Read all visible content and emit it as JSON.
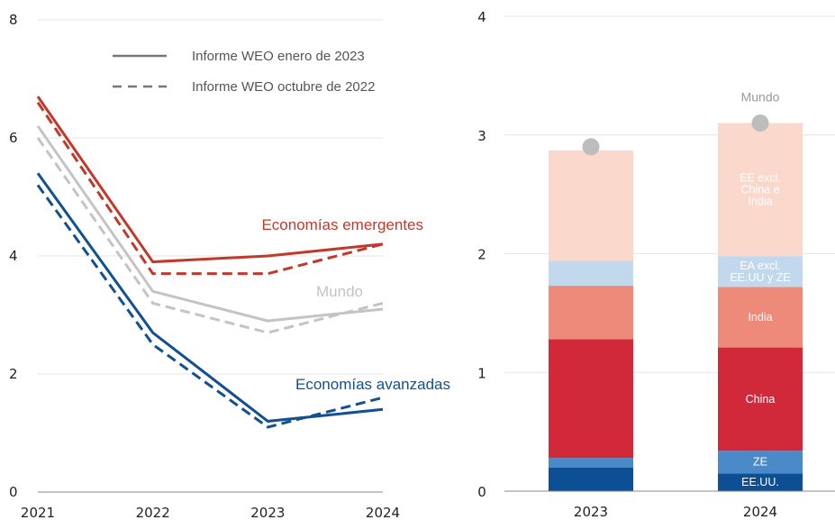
{
  "chart_data": [
    {
      "type": "line",
      "x": [
        2021,
        2022,
        2023,
        2024
      ],
      "ylim": [
        0,
        8
      ],
      "yticks": [
        0,
        2,
        4,
        6,
        8
      ],
      "grid": true,
      "legend": [
        {
          "label": "Informe WEO enero de 2023",
          "style": "solid"
        },
        {
          "label": "Informe WEO octubre de 2022",
          "style": "dashed"
        }
      ],
      "series": [
        {
          "name": "Economías emergentes",
          "color": "#c0392b",
          "solid": [
            6.7,
            3.9,
            4.0,
            4.2
          ],
          "dashed": [
            6.6,
            3.7,
            3.7,
            4.2
          ]
        },
        {
          "name": "Mundo",
          "color": "#c4c4c4",
          "solid": [
            6.2,
            3.4,
            2.9,
            3.1
          ],
          "dashed": [
            6.0,
            3.2,
            2.7,
            3.2
          ]
        },
        {
          "name": "Economías avanzadas",
          "color": "#12508f",
          "solid": [
            5.4,
            2.7,
            1.2,
            1.4
          ],
          "dashed": [
            5.2,
            2.5,
            1.1,
            1.6
          ]
        }
      ]
    },
    {
      "type": "bar",
      "stacked": true,
      "categories": [
        "2023",
        "2024"
      ],
      "ylim": [
        0,
        4
      ],
      "yticks": [
        0,
        1,
        2,
        3,
        4
      ],
      "grid": true,
      "total_label": "Mundo",
      "totals": [
        2.9,
        3.1
      ],
      "series": [
        {
          "name": "EE.UU.",
          "color": "#0d4f95",
          "values": [
            0.2,
            0.15
          ]
        },
        {
          "name": "ZE",
          "color": "#4a8ac9",
          "values": [
            0.08,
            0.19
          ]
        },
        {
          "name": "China",
          "color": "#d1293a",
          "values": [
            1.0,
            0.87
          ]
        },
        {
          "name": "India",
          "color": "#ee8a7a",
          "values": [
            0.45,
            0.51
          ]
        },
        {
          "name": "EA excl. EE.UU y ZE",
          "color": "#c2d8ec",
          "values": [
            0.21,
            0.26
          ]
        },
        {
          "name": "EE excl. China e India",
          "color": "#fbd8cc",
          "values": [
            0.93,
            1.12
          ]
        }
      ],
      "segment_labels_2024": [
        {
          "series": "EE.UU.",
          "lines": [
            "EE.UU."
          ]
        },
        {
          "series": "ZE",
          "lines": [
            "ZE"
          ]
        },
        {
          "series": "China",
          "lines": [
            "China"
          ]
        },
        {
          "series": "India",
          "lines": [
            "India"
          ]
        },
        {
          "series": "EA excl. EE.UU y ZE",
          "lines": [
            "EA excl.",
            "EE.UU y ZE"
          ]
        },
        {
          "series": "EE excl. China e India",
          "lines": [
            "EE excl.",
            "China e",
            "India"
          ]
        }
      ]
    }
  ]
}
